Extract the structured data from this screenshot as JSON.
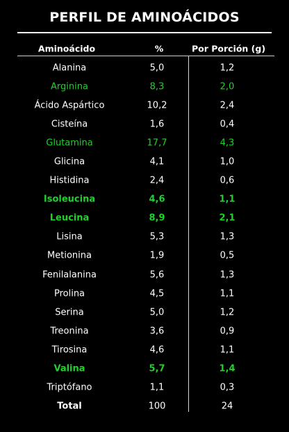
{
  "title": "PERFIL DE AMINOÁCIDOS",
  "colors": {
    "background": "#000000",
    "text": "#ffffff",
    "highlight": "#1fd12b"
  },
  "table": {
    "headers": {
      "name": "Aminoácido",
      "percent": "%",
      "portion": "Por Porción (g)"
    },
    "rows": [
      {
        "name": "Alanina",
        "percent": "5,0",
        "portion": "1,2",
        "style": "normal"
      },
      {
        "name": "Arginina",
        "percent": "8,3",
        "portion": "2,0",
        "style": "green"
      },
      {
        "name": "Ácido Aspártico",
        "percent": "10,2",
        "portion": "2,4",
        "style": "normal"
      },
      {
        "name": "Cisteína",
        "percent": "1,6",
        "portion": "0,4",
        "style": "normal"
      },
      {
        "name": "Glutamina",
        "percent": "17,7",
        "portion": "4,3",
        "style": "green"
      },
      {
        "name": "Glicina",
        "percent": "4,1",
        "portion": "1,0",
        "style": "normal"
      },
      {
        "name": "Histidina",
        "percent": "2,4",
        "portion": "0,6",
        "style": "normal"
      },
      {
        "name": "Isoleucina",
        "percent": "4,6",
        "portion": "1,1",
        "style": "green-bold"
      },
      {
        "name": "Leucina",
        "percent": "8,9",
        "portion": "2,1",
        "style": "green-bold"
      },
      {
        "name": "Lisina",
        "percent": "5,3",
        "portion": "1,3",
        "style": "normal"
      },
      {
        "name": "Metionina",
        "percent": "1,9",
        "portion": "0,5",
        "style": "normal"
      },
      {
        "name": "Fenilalanina",
        "percent": "5,6",
        "portion": "1,3",
        "style": "normal"
      },
      {
        "name": "Prolina",
        "percent": "4,5",
        "portion": "1,1",
        "style": "normal"
      },
      {
        "name": "Serina",
        "percent": "5,0",
        "portion": "1,2",
        "style": "normal"
      },
      {
        "name": "Treonina",
        "percent": "3,6",
        "portion": "0,9",
        "style": "normal"
      },
      {
        "name": "Tirosina",
        "percent": "4,6",
        "portion": "1,1",
        "style": "normal"
      },
      {
        "name": "Valina",
        "percent": "5,7",
        "portion": "1,4",
        "style": "green-bold"
      },
      {
        "name": "Triptófano",
        "percent": "1,1",
        "portion": "0,3",
        "style": "normal"
      },
      {
        "name": "Total",
        "percent": "100",
        "portion": "24",
        "style": "bold-name"
      }
    ]
  }
}
